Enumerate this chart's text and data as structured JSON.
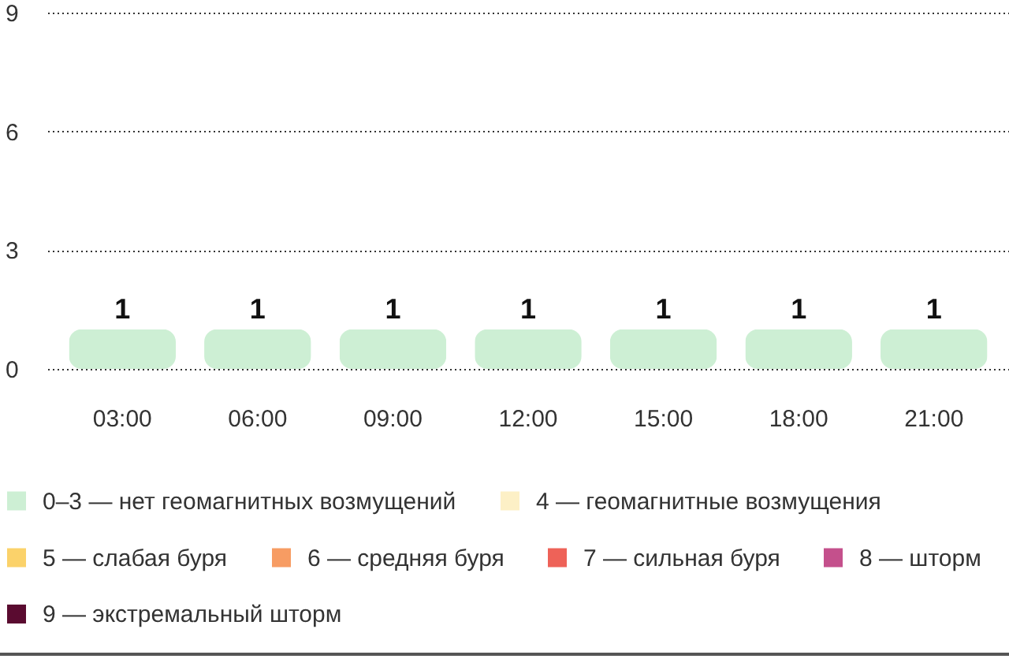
{
  "chart_data": {
    "type": "bar",
    "categories": [
      "03:00",
      "06:00",
      "09:00",
      "12:00",
      "15:00",
      "18:00",
      "21:00"
    ],
    "series": [
      {
        "name": "0–3 — нет геомагнитных возмущений",
        "color": "#cdefd4",
        "values": [
          1,
          1,
          1,
          1,
          1,
          1,
          1
        ]
      },
      {
        "name": "4 — геомагнитные возмущения",
        "color": "#fdf0c6",
        "values": [
          null,
          null,
          null,
          null,
          null,
          null,
          null
        ]
      },
      {
        "name": "5 — слабая буря",
        "color": "#fbd26a",
        "values": [
          null,
          null,
          null,
          null,
          null,
          null,
          null
        ]
      },
      {
        "name": "6 — средняя буря",
        "color": "#f79c63",
        "values": [
          null,
          null,
          null,
          null,
          null,
          null,
          null
        ]
      },
      {
        "name": "7 — сильная буря",
        "color": "#ee6258",
        "values": [
          null,
          null,
          null,
          null,
          null,
          null,
          null
        ]
      },
      {
        "name": "8 — шторм",
        "color": "#c4508c",
        "values": [
          null,
          null,
          null,
          null,
          null,
          null,
          null
        ]
      },
      {
        "name": "9 — экстремальный шторм",
        "color": "#5a0b30",
        "values": [
          null,
          null,
          null,
          null,
          null,
          null,
          null
        ]
      }
    ],
    "ylim": [
      0,
      9
    ],
    "yticks": [
      0,
      3,
      6,
      9
    ],
    "grid": "y",
    "legend": "bottom",
    "data_labels": true
  }
}
